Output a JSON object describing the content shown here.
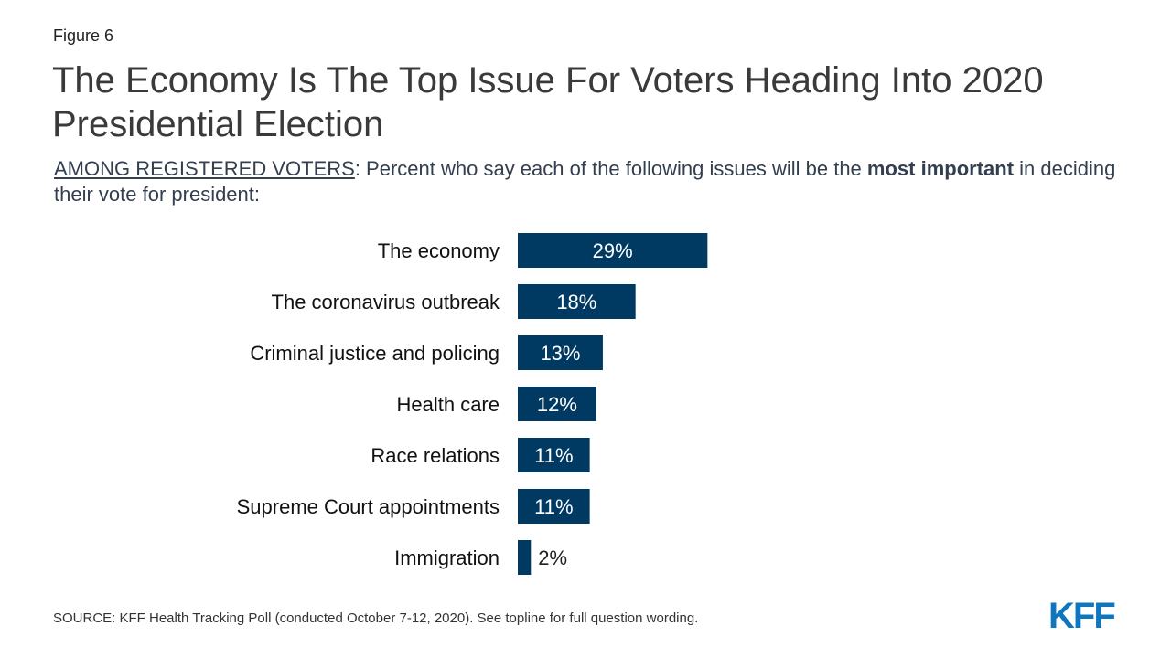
{
  "figure_label": "Figure 6",
  "title": "The Economy Is The Top Issue For Voters Heading Into 2020 Presidential Election",
  "subtitle": {
    "population": "AMONG REGISTERED VOTERS",
    "text_before": ": Percent who say each of the following issues will be the ",
    "emphasis": "most important",
    "text_after": " in deciding their vote for president:"
  },
  "chart_data": {
    "type": "bar",
    "orientation": "horizontal",
    "categories": [
      "The economy",
      "The coronavirus outbreak",
      "Criminal justice and policing",
      "Health care",
      "Race relations",
      "Supreme Court appointments",
      "Immigration"
    ],
    "values": [
      29,
      18,
      13,
      12,
      11,
      11,
      2
    ],
    "value_labels": [
      "29%",
      "18%",
      "13%",
      "12%",
      "11%",
      "11%",
      "2%"
    ],
    "title": "",
    "xlabel": "",
    "ylabel": "",
    "xlim": [
      0,
      100
    ],
    "grid": false,
    "legend": "none",
    "bar_color": "#003a63",
    "inside_label_color": "#ffffff",
    "outside_label_color": "#222222"
  },
  "source": "SOURCE: KFF Health Tracking Poll (conducted October 7-12, 2020). See topline for full question wording.",
  "logo_text": "KFF",
  "colors": {
    "brand_blue": "#0f75bc",
    "bar": "#003a63"
  }
}
